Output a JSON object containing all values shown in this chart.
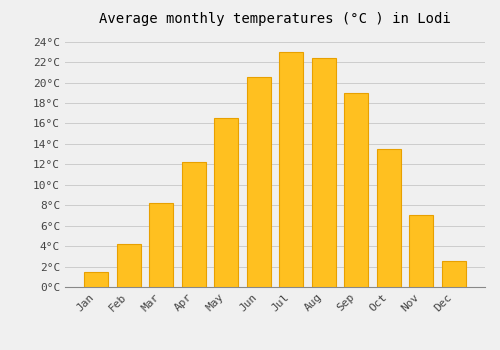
{
  "title": "Average monthly temperatures (°C ) in Lodi",
  "months": [
    "Jan",
    "Feb",
    "Mar",
    "Apr",
    "May",
    "Jun",
    "Jul",
    "Aug",
    "Sep",
    "Oct",
    "Nov",
    "Dec"
  ],
  "values": [
    1.5,
    4.2,
    8.2,
    12.2,
    16.5,
    20.5,
    23.0,
    22.4,
    19.0,
    13.5,
    7.0,
    2.5
  ],
  "bar_color": "#FFC020",
  "bar_edge_color": "#E8A000",
  "ylim": [
    0,
    25
  ],
  "yticks": [
    0,
    2,
    4,
    6,
    8,
    10,
    12,
    14,
    16,
    18,
    20,
    22,
    24
  ],
  "ytick_labels": [
    "0°C",
    "2°C",
    "4°C",
    "6°C",
    "8°C",
    "10°C",
    "12°C",
    "14°C",
    "16°C",
    "18°C",
    "20°C",
    "22°C",
    "24°C"
  ],
  "bg_color": "#F0F0F0",
  "grid_color": "#CCCCCC",
  "title_fontsize": 10,
  "tick_fontsize": 8
}
